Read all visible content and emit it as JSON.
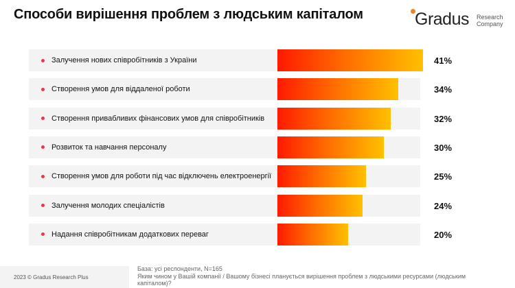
{
  "title": "Способи вирішення проблем з людським капіталом",
  "logo": {
    "brand": "Gradus",
    "sub_line1": "Research",
    "sub_line2": "Company",
    "accent_color": "#f5821f"
  },
  "chart_data": {
    "type": "bar",
    "orientation": "horizontal",
    "title": "Способи вирішення проблем з людським капіталом",
    "categories": [
      "Залучення нових співробітників з України",
      "Створення умов для віддаленої роботи",
      "Створення привабливих фінансових умов для співробітників",
      "Розвиток та навчання персоналу",
      "Створення умов для роботи під час відключень електроенергії",
      "Залучення молодих спеціалістів",
      "Надання співробітникам додаткових переваг"
    ],
    "values": [
      41,
      34,
      32,
      30,
      25,
      24,
      20
    ],
    "value_labels": [
      "41%",
      "34%",
      "32%",
      "30%",
      "25%",
      "24%",
      "20%"
    ],
    "xlim": [
      0,
      41
    ],
    "unit": "%",
    "bar_gradient": [
      "#ff1a00",
      "#ff6a00",
      "#ffc000"
    ],
    "bullet_color": "#e8374a"
  },
  "footer": {
    "copyright": "2023 © Gradus Research Plus",
    "base": "База: усі респонденти, N=165",
    "question": "Яким чином у Вашій компанії / Вашому бізнесі планується вирішення проблем з людськими ресурсами (людським капіталом)?"
  }
}
